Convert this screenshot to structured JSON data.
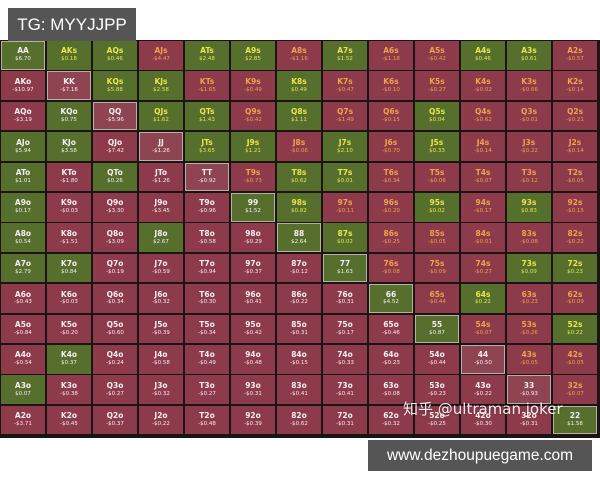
{
  "tag": {
    "label": "TG: MYYJJPP"
  },
  "watermark": {
    "label": "知乎 @ultraman joker"
  },
  "site": {
    "label": "www.dezhoupuegame.com"
  },
  "colors": {
    "positive": "#566f2d",
    "negative": "#8d3a4a",
    "suited_pos_text": "#e8e64a",
    "suited_neg_text": "#f2a24a",
    "offsuit_text": "#f4eef0"
  },
  "grid": {
    "rows": [
      [
        [
          "AA",
          "$6.70"
        ],
        [
          "AKs",
          "$0.18"
        ],
        [
          "AQs",
          "$0.46"
        ],
        [
          "AJs",
          "-$4.47"
        ],
        [
          "ATs",
          "$2.48"
        ],
        [
          "A9s",
          "$2.85"
        ],
        [
          "A8s",
          "-$1.16"
        ],
        [
          "A7s",
          "$1.52"
        ],
        [
          "A6s",
          "-$1.18"
        ],
        [
          "A5s",
          "-$0.42"
        ],
        [
          "A4s",
          "$0.46"
        ],
        [
          "A3s",
          "$0.61"
        ],
        [
          "A2s",
          "-$0.57"
        ]
      ],
      [
        [
          "AKo",
          "-$10.97"
        ],
        [
          "KK",
          "-$7.18"
        ],
        [
          "KQs",
          "$5.88"
        ],
        [
          "KJs",
          "$2.58"
        ],
        [
          "KTs",
          "-$1.65"
        ],
        [
          "K9s",
          "-$0.49"
        ],
        [
          "K8s",
          "$0.49"
        ],
        [
          "K7s",
          "-$0.47"
        ],
        [
          "K6s",
          "-$0.10"
        ],
        [
          "K5s",
          "-$0.27"
        ],
        [
          "K4s",
          "-$0.02"
        ],
        [
          "K3s",
          "-$0.66"
        ],
        [
          "K2s",
          "-$0.14"
        ]
      ],
      [
        [
          "AQo",
          "-$3.19"
        ],
        [
          "KQo",
          "$0.75"
        ],
        [
          "QQ",
          "-$5.96"
        ],
        [
          "QJs",
          "$1.62"
        ],
        [
          "QTs",
          "$1.43"
        ],
        [
          "Q9s",
          "-$0.42"
        ],
        [
          "Q8s",
          "$1.11"
        ],
        [
          "Q7s",
          "-$1.49"
        ],
        [
          "Q6s",
          "-$0.15"
        ],
        [
          "Q5s",
          "$0.04"
        ],
        [
          "Q4s",
          "-$0.62"
        ],
        [
          "Q3s",
          "-$0.01"
        ],
        [
          "Q2s",
          "-$0.21"
        ]
      ],
      [
        [
          "AJo",
          "$5.94"
        ],
        [
          "KJo",
          "$3.58"
        ],
        [
          "QJo",
          "-$7.42"
        ],
        [
          "JJ",
          "-$1.26"
        ],
        [
          "JTs",
          "$3.65"
        ],
        [
          "J9s",
          "$1.21"
        ],
        [
          "J8s",
          "-$0.06"
        ],
        [
          "J7s",
          "$2.10"
        ],
        [
          "J6s",
          "-$0.70"
        ],
        [
          "J5s",
          "$0.33"
        ],
        [
          "J4s",
          "-$0.14"
        ],
        [
          "J3s",
          "-$0.22"
        ],
        [
          "J2s",
          "-$0.14"
        ]
      ],
      [
        [
          "ATo",
          "$1.01"
        ],
        [
          "KTo",
          "-$1.80"
        ],
        [
          "QTo",
          "$0.26"
        ],
        [
          "JTo",
          "-$1.26"
        ],
        [
          "TT",
          "-$0.92"
        ],
        [
          "T9s",
          "-$0.73"
        ],
        [
          "T8s",
          "$0.62"
        ],
        [
          "T7s",
          "$0.01"
        ],
        [
          "T6s",
          "-$0.34"
        ],
        [
          "T5s",
          "-$0.06"
        ],
        [
          "T4s",
          "-$0.07"
        ],
        [
          "T3s",
          "-$0.12"
        ],
        [
          "T2s",
          "-$0.05"
        ]
      ],
      [
        [
          "A9o",
          "$0.17"
        ],
        [
          "K9o",
          "-$0.03"
        ],
        [
          "Q9o",
          "-$3.30"
        ],
        [
          "J9o",
          "-$3.45"
        ],
        [
          "T9o",
          "-$0.96"
        ],
        [
          "99",
          "$1.52"
        ],
        [
          "98s",
          "$0.82"
        ],
        [
          "97s",
          "-$0.11"
        ],
        [
          "96s",
          "-$0.20"
        ],
        [
          "95s",
          "$0.02"
        ],
        [
          "94s",
          "-$0.17"
        ],
        [
          "93s",
          "$0.83"
        ],
        [
          "92s",
          "-$0.15"
        ]
      ],
      [
        [
          "A8o",
          "$0.54"
        ],
        [
          "K8o",
          "-$1.51"
        ],
        [
          "Q8o",
          "-$3.09"
        ],
        [
          "J8o",
          "$2.67"
        ],
        [
          "T8o",
          "-$0.58"
        ],
        [
          "98o",
          "-$0.29"
        ],
        [
          "88",
          "$2.64"
        ],
        [
          "87s",
          "$0.02"
        ],
        [
          "86s",
          "-$0.25"
        ],
        [
          "85s",
          "-$0.05"
        ],
        [
          "84s",
          "-$0.01"
        ],
        [
          "83s",
          "-$0.08"
        ],
        [
          "82s",
          "-$0.22"
        ]
      ],
      [
        [
          "A7o",
          "$2.79"
        ],
        [
          "K7o",
          "$0.84"
        ],
        [
          "Q7o",
          "-$0.19"
        ],
        [
          "J7o",
          "-$0.59"
        ],
        [
          "T7o",
          "-$0.94"
        ],
        [
          "97o",
          "-$0.37"
        ],
        [
          "87o",
          "-$0.12"
        ],
        [
          "77",
          "$1.63"
        ],
        [
          "76s",
          "-$0.08"
        ],
        [
          "75s",
          "-$0.09"
        ],
        [
          "74s",
          "-$0.27"
        ],
        [
          "73s",
          "$0.09"
        ],
        [
          "72s",
          "$0.23"
        ]
      ],
      [
        [
          "A6o",
          "-$0.43"
        ],
        [
          "K6o",
          "-$0.03"
        ],
        [
          "Q6o",
          "-$0.34"
        ],
        [
          "J6o",
          "-$0.32"
        ],
        [
          "T6o",
          "-$0.30"
        ],
        [
          "96o",
          "-$0.41"
        ],
        [
          "86o",
          "-$0.22"
        ],
        [
          "76o",
          "-$0.31"
        ],
        [
          "66",
          "$4.52"
        ],
        [
          "65s",
          "-$0.44"
        ],
        [
          "64s",
          "$0.22"
        ],
        [
          "63s",
          "-$0.23"
        ],
        [
          "62s",
          "-$0.09"
        ]
      ],
      [
        [
          "A5o",
          "-$0.84"
        ],
        [
          "K5o",
          "-$0.20"
        ],
        [
          "Q5o",
          "-$0.60"
        ],
        [
          "J5o",
          "-$0.39"
        ],
        [
          "T5o",
          "-$0.34"
        ],
        [
          "95o",
          "-$0.42"
        ],
        [
          "85o",
          "-$0.31"
        ],
        [
          "75o",
          "-$0.17"
        ],
        [
          "65o",
          "-$0.46"
        ],
        [
          "55",
          "$0.87"
        ],
        [
          "54s",
          "-$0.07"
        ],
        [
          "53s",
          "-$0.26"
        ],
        [
          "52s",
          "$0.22"
        ]
      ],
      [
        [
          "A4o",
          "-$0.54"
        ],
        [
          "K4o",
          "$0.37"
        ],
        [
          "Q4o",
          "-$0.24"
        ],
        [
          "J4o",
          "-$0.58"
        ],
        [
          "T4o",
          "-$0.49"
        ],
        [
          "94o",
          "-$0.48"
        ],
        [
          "84o",
          "-$0.15"
        ],
        [
          "74o",
          "-$0.33"
        ],
        [
          "64o",
          "-$0.23"
        ],
        [
          "54o",
          "-$0.44"
        ],
        [
          "44",
          "-$0.50"
        ],
        [
          "43s",
          "-$0.05"
        ],
        [
          "42s",
          "-$0.05"
        ]
      ],
      [
        [
          "A3o",
          "$0.07"
        ],
        [
          "K3o",
          "-$0.38"
        ],
        [
          "Q3o",
          "-$0.27"
        ],
        [
          "J3o",
          "-$0.32"
        ],
        [
          "T3o",
          "-$0.27"
        ],
        [
          "93o",
          "-$0.31"
        ],
        [
          "83o",
          "-$0.41"
        ],
        [
          "73o",
          "-$0.41"
        ],
        [
          "63o",
          "-$0.08"
        ],
        [
          "53o",
          "-$0.23"
        ],
        [
          "43o",
          "-$0.22"
        ],
        [
          "33",
          "-$0.93"
        ],
        [
          "32s",
          "-$0.07"
        ]
      ],
      [
        [
          "A2o",
          "-$3.71"
        ],
        [
          "K2o",
          "-$0.45"
        ],
        [
          "Q2o",
          "-$0.37"
        ],
        [
          "J2o",
          "-$0.22"
        ],
        [
          "T2o",
          "-$0.48"
        ],
        [
          "92o",
          "-$0.39"
        ],
        [
          "82o",
          "-$0.62"
        ],
        [
          "72o",
          "-$0.31"
        ],
        [
          "62o",
          "-$0.32"
        ],
        [
          "52o",
          "-$0.25"
        ],
        [
          "42o",
          "-$0.30"
        ],
        [
          "32o",
          "-$0.31"
        ],
        [
          "22",
          "$1.58"
        ]
      ]
    ]
  }
}
